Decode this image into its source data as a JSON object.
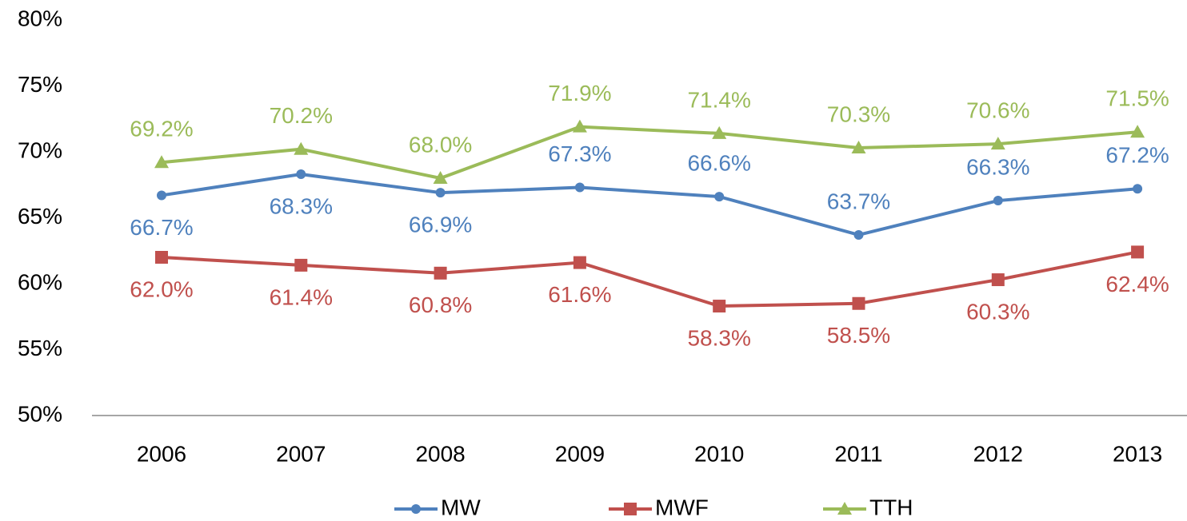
{
  "chart_data": {
    "type": "line",
    "categories": [
      "2006",
      "2007",
      "2008",
      "2009",
      "2010",
      "2011",
      "2012",
      "2013"
    ],
    "series": [
      {
        "name": "MW",
        "color": "#4f81bd",
        "marker": "circle",
        "values": [
          66.7,
          68.3,
          66.9,
          67.3,
          66.6,
          63.7,
          66.3,
          67.2
        ],
        "value_labels": [
          "66.7%",
          "68.3%",
          "66.9%",
          "67.3%",
          "66.6%",
          "63.7%",
          "66.3%",
          "67.2%"
        ]
      },
      {
        "name": "MWF",
        "color": "#c0504d",
        "marker": "square",
        "values": [
          62.0,
          61.4,
          60.8,
          61.6,
          58.3,
          58.5,
          60.3,
          62.4
        ],
        "value_labels": [
          "62.0%",
          "61.4%",
          "60.8%",
          "61.6%",
          "58.3%",
          "58.5%",
          "60.3%",
          "62.4%"
        ]
      },
      {
        "name": "TTH",
        "color": "#9bbb59",
        "marker": "triangle",
        "values": [
          69.2,
          70.2,
          68.0,
          71.9,
          71.4,
          70.3,
          70.6,
          71.5
        ],
        "value_labels": [
          "69.2%",
          "70.2%",
          "68.0%",
          "71.9%",
          "71.4%",
          "70.3%",
          "70.6%",
          "71.5%"
        ]
      }
    ],
    "ylim": [
      50,
      80
    ],
    "yticks": [
      {
        "value": 50,
        "label": "50%"
      },
      {
        "value": 55,
        "label": "55%"
      },
      {
        "value": 60,
        "label": "60%"
      },
      {
        "value": 65,
        "label": "65%"
      },
      {
        "value": 70,
        "label": "70%"
      },
      {
        "value": 75,
        "label": "75%"
      },
      {
        "value": 80,
        "label": "80%"
      }
    ],
    "grid": false,
    "legend": "bottom"
  }
}
